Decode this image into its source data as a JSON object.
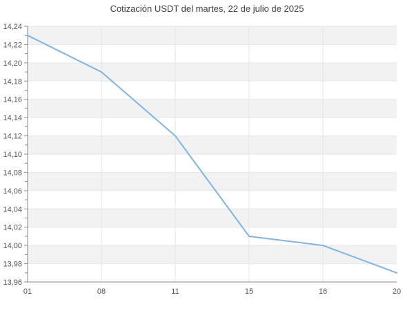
{
  "chart_data": {
    "type": "line",
    "title": "Cotización USDT del martes, 22 de julio de 2025",
    "xlabel": "",
    "ylabel": "",
    "categories": [
      "01",
      "08",
      "11",
      "15",
      "16",
      "20"
    ],
    "series": [
      {
        "name": "USDT",
        "values": [
          14.23,
          14.19,
          14.12,
          14.01,
          14.0,
          13.97
        ]
      }
    ],
    "ylim": [
      13.96,
      14.24
    ],
    "ytick_step": 0.02,
    "y_minor_tick_step": 0.01,
    "y_tick_labels": [
      "13,96",
      "13,98",
      "14,00",
      "14,02",
      "14,04",
      "14,06",
      "14,08",
      "14,10",
      "14,12",
      "14,14",
      "14,16",
      "14,18",
      "14,20",
      "14,22",
      "14,24"
    ],
    "grid": true,
    "alternate_band_fill": true,
    "legend": "none",
    "colors": {
      "line": "#7cb5ec",
      "band": "#f2f2f2",
      "grid": "#e6e6e6",
      "axis": "#888888",
      "tick_label": "#555555",
      "title": "#3f3f3f",
      "background": "#ffffff"
    }
  }
}
